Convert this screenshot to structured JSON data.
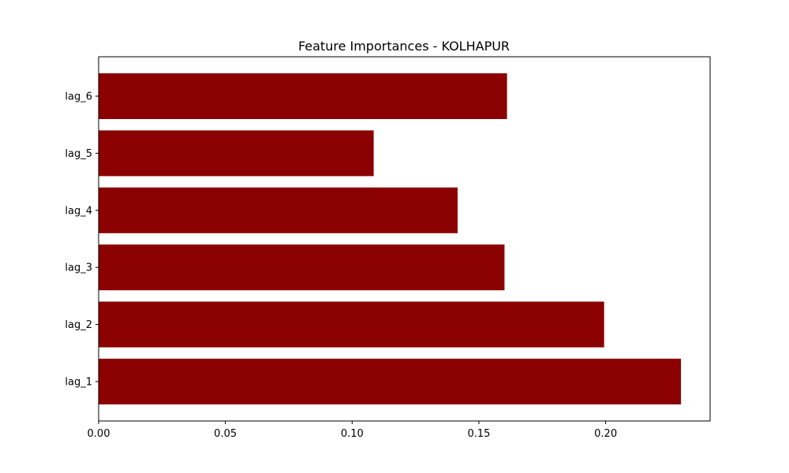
{
  "chart_data": {
    "type": "bar",
    "orientation": "horizontal",
    "title": "Feature Importances - KOLHAPUR",
    "xlabel": "",
    "ylabel": "",
    "categories": [
      "lag_1",
      "lag_2",
      "lag_3",
      "lag_4",
      "lag_5",
      "lag_6"
    ],
    "values": [
      0.2297,
      0.1994,
      0.1601,
      0.1416,
      0.1085,
      0.1611
    ],
    "xlim": [
      0.0,
      0.2412
    ],
    "xticks": [
      0.0,
      0.05,
      0.1,
      0.15,
      0.2
    ],
    "xtick_labels": [
      "0.00",
      "0.05",
      "0.10",
      "0.15",
      "0.20"
    ],
    "bar_color": "#8b0000",
    "grid": false,
    "legend": "none"
  }
}
